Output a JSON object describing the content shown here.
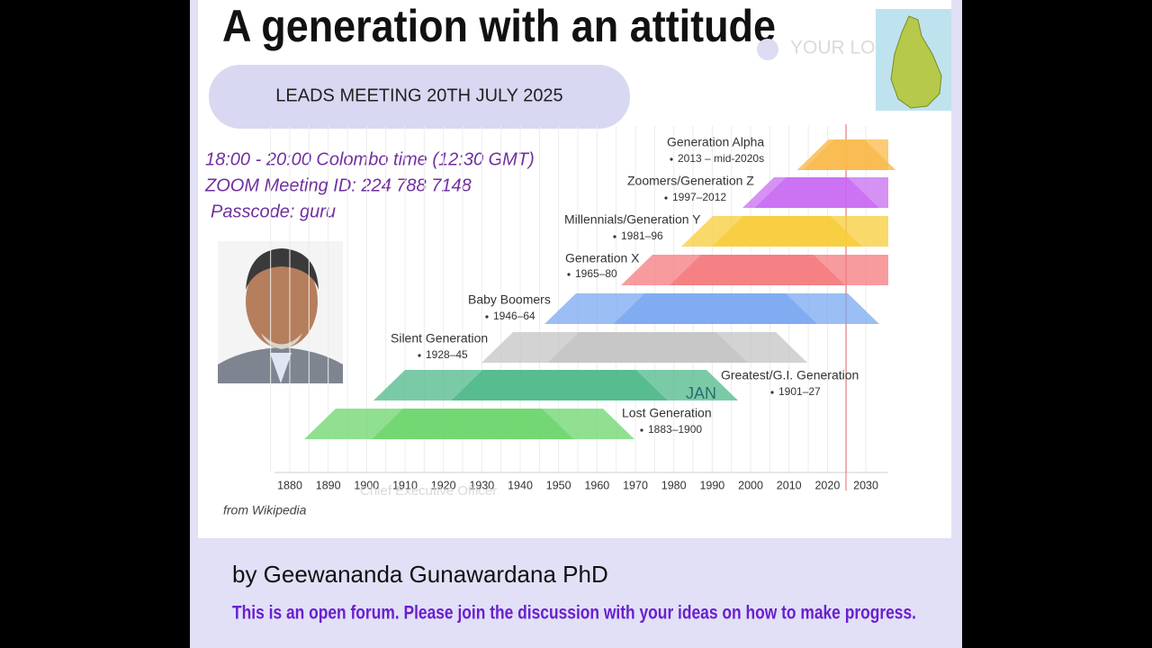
{
  "header": {
    "title": "A generation with an attitude",
    "logo_placeholder": "YOUR LOGO"
  },
  "meeting": {
    "banner": "LEADS MEETING 20TH JULY 2025",
    "details": [
      "18:00 - 20:00 Colombo time (12:30 GMT)",
      "ZOOM Meeting ID: 224 788 7148",
      "Passcode: guru"
    ]
  },
  "timeline": {
    "generations": [
      {
        "name": "Generation Alpha",
        "years": "2013 – mid-2020s"
      },
      {
        "name": "Zoomers/Generation Z",
        "years": "1997–2012"
      },
      {
        "name": "Millennials/Generation Y",
        "years": "1981–96"
      },
      {
        "name": "Generation X",
        "years": "1965–80"
      },
      {
        "name": "Baby Boomers",
        "years": "1946–64"
      },
      {
        "name": "Silent Generation",
        "years": "1928–45"
      },
      {
        "name": "Greatest/G.I. Generation",
        "years": "1901–27"
      },
      {
        "name": "Lost Generation",
        "years": "1883–1900"
      }
    ],
    "xticks": [
      1880,
      1890,
      1900,
      1910,
      1920,
      1930,
      1940,
      1950,
      1960,
      1970,
      1980,
      1990,
      2000,
      2010,
      2020,
      2030
    ],
    "overlay_label": "JAN",
    "overlay_caption": "Chief Executive Officer",
    "source": "from Wikipedia"
  },
  "footer": {
    "author": "by Geewananda Gunawardana PhD",
    "note": "This is an open forum. Please join the discussion with your ideas on how to make progress."
  }
}
